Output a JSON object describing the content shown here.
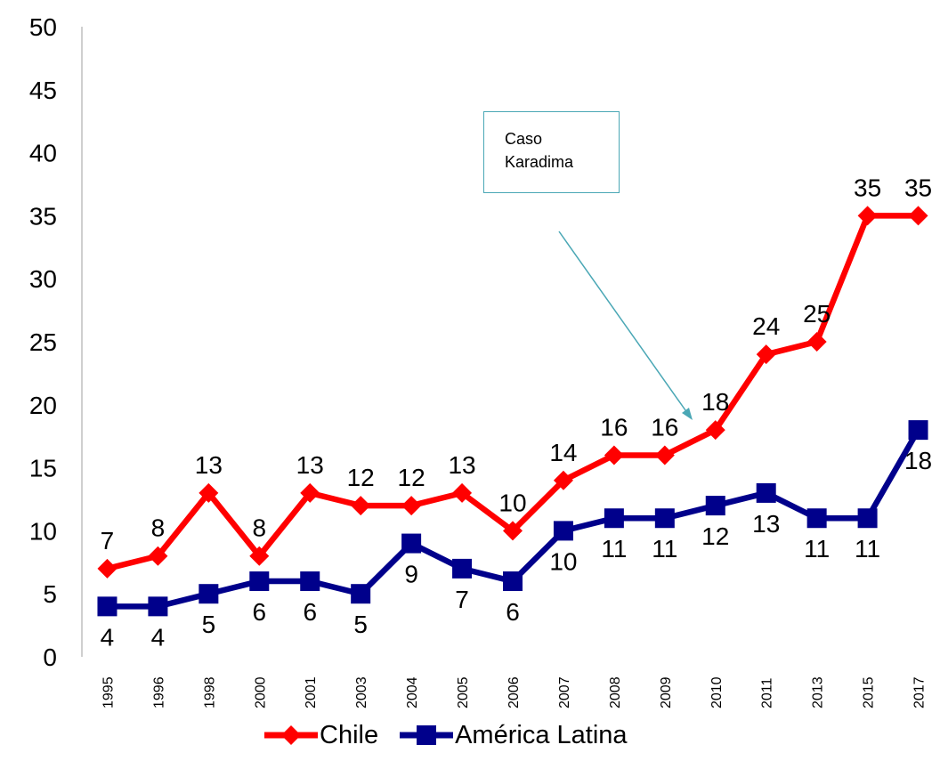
{
  "chart_data": {
    "type": "line",
    "title": "",
    "xlabel": "",
    "ylabel": "",
    "ylim": [
      0,
      50
    ],
    "yticks": [
      "0",
      "5",
      "10",
      "15",
      "20",
      "25",
      "30",
      "35",
      "40",
      "45",
      "50"
    ],
    "categories": [
      "1995",
      "1996",
      "1998",
      "2000",
      "2001",
      "2003",
      "2004",
      "2005",
      "2006",
      "2007",
      "2008",
      "2009",
      "2010",
      "2011",
      "2013",
      "2015",
      "2017"
    ],
    "series": [
      {
        "name": "Chile",
        "color": "#ff0000",
        "marker": "diamond",
        "values": [
          7,
          8,
          13,
          8,
          13,
          12,
          12,
          13,
          10,
          14,
          16,
          16,
          18,
          24,
          25,
          35,
          35
        ]
      },
      {
        "name": "América Latina",
        "color": "#00008b",
        "marker": "square",
        "values": [
          4,
          4,
          5,
          6,
          6,
          5,
          9,
          7,
          6,
          10,
          11,
          11,
          12,
          13,
          11,
          11,
          18
        ]
      }
    ],
    "grid": false,
    "legend_position": "bottom",
    "annotation": {
      "lines": [
        "Caso",
        "Karadima"
      ],
      "points_to_category": "2010"
    }
  }
}
